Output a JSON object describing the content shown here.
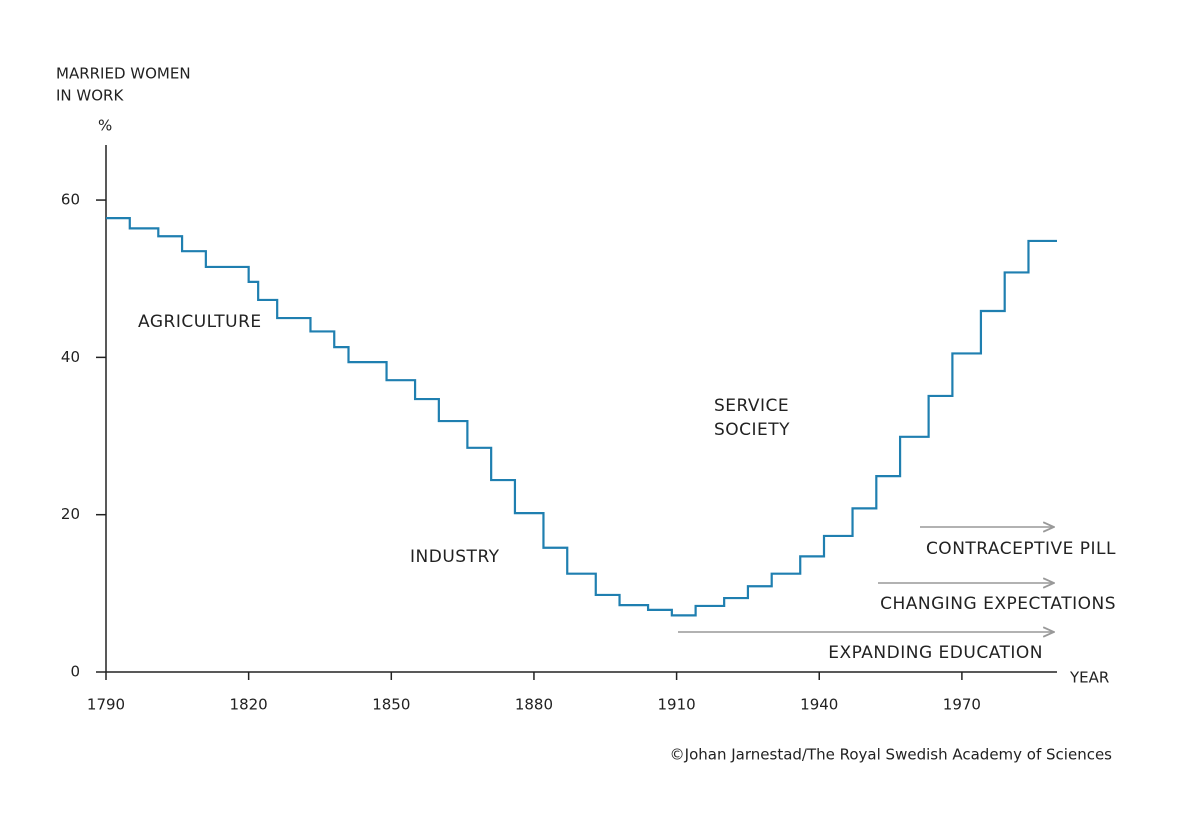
{
  "chart_data": {
    "type": "step",
    "y_label": [
      "MARRIED WOMEN",
      "IN WORK"
    ],
    "y_unit": "%",
    "x_label": "YEAR",
    "credit": "©Johan Jarnestad/The Royal Swedish Academy of Sciences",
    "annotations": [
      "AGRICULTURE",
      "INDUSTRY",
      "SERVICE",
      "SOCIETY",
      "CONTRACEPTIVE PILL",
      "CHANGING EXPECTATIONS",
      "EXPANDING EDUCATION"
    ],
    "x": [
      1790,
      1795,
      1801,
      1806,
      1811,
      1820,
      1822,
      1826,
      1829,
      1833,
      1838,
      1841,
      1849,
      1855,
      1860,
      1866,
      1871,
      1876,
      1882,
      1887,
      1893,
      1898,
      1904,
      1909,
      1914,
      1920,
      1925,
      1930,
      1936,
      1941,
      1947,
      1952,
      1957,
      1963,
      1968,
      1974,
      1979,
      1984,
      1990
    ],
    "values": [
      57.7,
      56.4,
      55.4,
      53.5,
      51.5,
      49.6,
      47.3,
      45,
      45,
      43.3,
      41.3,
      39.4,
      37.1,
      34.7,
      31.9,
      28.5,
      24.4,
      20.2,
      15.8,
      12.5,
      9.8,
      8.5,
      7.9,
      7.2,
      8.4,
      9.4,
      10.9,
      12.5,
      14.7,
      17.3,
      20.8,
      24.9,
      29.9,
      35.1,
      40.5,
      45.9,
      50.8,
      54.8,
      54.8
    ],
    "color": "#1f7fb0",
    "xlim": [
      1790,
      1990
    ],
    "xticks": [
      1790,
      1820,
      1850,
      1880,
      1910,
      1940,
      1970
    ],
    "ylim": [
      0,
      67
    ],
    "yticks": [
      0,
      20,
      40,
      60
    ]
  }
}
